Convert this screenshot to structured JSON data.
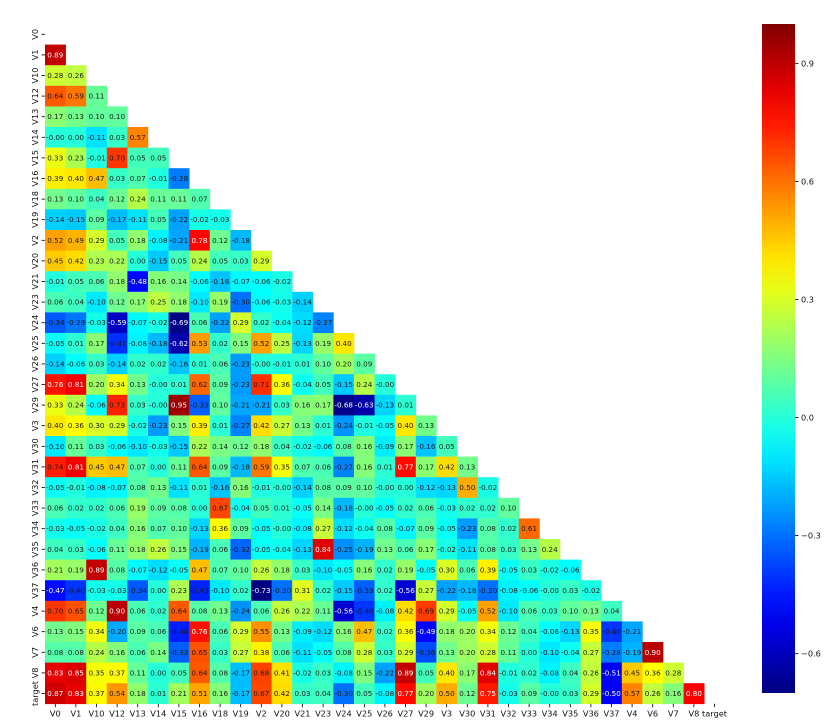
{
  "chart_data": {
    "type": "heatmap",
    "variant": "lower-triangle correlation matrix",
    "colormap": "jet",
    "vmin": -0.7,
    "vmax": 1.0,
    "labels": [
      "V0",
      "V1",
      "V10",
      "V12",
      "V13",
      "V14",
      "V15",
      "V16",
      "V18",
      "V19",
      "V2",
      "V20",
      "V21",
      "V23",
      "V24",
      "V25",
      "V26",
      "V27",
      "V29",
      "V3",
      "V30",
      "V31",
      "V32",
      "V33",
      "V34",
      "V35",
      "V36",
      "V37",
      "V4",
      "V6",
      "V7",
      "V8",
      "target"
    ],
    "matrix": [
      [],
      [
        0.89
      ],
      [
        0.28,
        0.26
      ],
      [
        0.64,
        0.59,
        0.11
      ],
      [
        0.17,
        0.13,
        0.1,
        0.1
      ],
      [
        -0.0,
        0.0,
        -0.11,
        0.03,
        0.57
      ],
      [
        0.33,
        0.23,
        -0.01,
        0.7,
        0.05,
        0.05
      ],
      [
        0.39,
        0.4,
        0.47,
        0.03,
        0.07,
        -0.01,
        -0.28
      ],
      [
        0.13,
        0.1,
        0.04,
        0.12,
        0.24,
        0.11,
        0.11,
        0.07
      ],
      [
        -0.14,
        -0.15,
        0.09,
        -0.17,
        -0.11,
        0.05,
        -0.22,
        -0.02,
        -0.03
      ],
      [
        0.52,
        0.49,
        0.29,
        0.05,
        0.18,
        -0.08,
        -0.21,
        0.78,
        0.12,
        -0.18
      ],
      [
        0.45,
        0.42,
        0.23,
        0.22,
        0.0,
        -0.15,
        0.05,
        0.24,
        0.05,
        0.03,
        0.29
      ],
      [
        -0.01,
        0.05,
        0.06,
        0.18,
        -0.48,
        0.16,
        0.14,
        -0.06,
        -0.16,
        -0.07,
        -0.06,
        -0.02
      ],
      [
        0.06,
        0.04,
        -0.1,
        0.12,
        0.17,
        0.25,
        0.18,
        -0.1,
        0.19,
        -0.3,
        -0.06,
        -0.03,
        -0.14
      ],
      [
        -0.34,
        -0.29,
        -0.03,
        -0.59,
        -0.07,
        -0.02,
        -0.69,
        0.06,
        -0.22,
        0.29,
        0.02,
        -0.04,
        -0.12,
        -0.27
      ],
      [
        -0.05,
        0.01,
        0.17,
        -0.41,
        -0.08,
        -0.18,
        -0.62,
        0.53,
        0.02,
        0.15,
        0.52,
        0.25,
        -0.13,
        0.19,
        0.4
      ],
      [
        -0.14,
        -0.06,
        0.03,
        -0.14,
        0.02,
        0.02,
        -0.16,
        0.01,
        0.06,
        -0.23,
        -0.0,
        -0.01,
        0.01,
        0.1,
        0.2,
        0.09
      ],
      [
        0.76,
        0.81,
        0.2,
        0.34,
        0.13,
        -0.0,
        0.01,
        0.62,
        0.09,
        -0.23,
        0.71,
        0.36,
        -0.04,
        0.05,
        -0.15,
        0.24,
        -0.0
      ],
      [
        0.33,
        0.24,
        -0.06,
        0.73,
        0.03,
        -0.0,
        0.95,
        -0.33,
        0.1,
        -0.21,
        -0.21,
        0.03,
        0.16,
        0.17,
        -0.68,
        -0.63,
        -0.13,
        0.01
      ],
      [
        0.4,
        0.36,
        0.3,
        0.29,
        -0.02,
        -0.23,
        0.15,
        0.39,
        0.01,
        -0.27,
        0.42,
        0.27,
        0.13,
        0.01,
        -0.24,
        -0.01,
        -0.05,
        0.4,
        0.13
      ],
      [
        -0.1,
        0.11,
        0.03,
        -0.06,
        -0.1,
        -0.03,
        -0.15,
        0.22,
        0.14,
        0.12,
        0.18,
        0.04,
        -0.02,
        -0.06,
        0.08,
        0.16,
        -0.09,
        0.17,
        -0.16,
        0.05
      ],
      [
        0.74,
        0.81,
        0.45,
        0.47,
        0.07,
        0.0,
        0.11,
        0.64,
        0.09,
        -0.18,
        0.59,
        0.35,
        0.07,
        0.06,
        -0.27,
        0.16,
        0.01,
        0.77,
        0.17,
        0.42,
        0.13
      ],
      [
        -0.05,
        -0.01,
        -0.08,
        -0.07,
        0.08,
        0.13,
        -0.11,
        0.01,
        -0.16,
        0.16,
        -0.01,
        -0.0,
        -0.14,
        0.08,
        0.09,
        0.1,
        -0.0,
        0.0,
        -0.12,
        -0.13,
        0.5,
        -0.02
      ],
      [
        0.06,
        0.02,
        0.02,
        0.06,
        0.19,
        0.09,
        0.08,
        0.0,
        0.67,
        -0.04,
        0.05,
        0.01,
        -0.05,
        0.14,
        -0.18,
        -0.0,
        -0.05,
        0.02,
        0.06,
        -0.03,
        0.02,
        0.02,
        0.1
      ],
      [
        -0.03,
        -0.05,
        -0.02,
        0.04,
        0.16,
        0.07,
        0.1,
        -0.13,
        0.36,
        0.09,
        -0.05,
        -0.0,
        -0.08,
        0.27,
        -0.12,
        -0.04,
        0.08,
        -0.07,
        0.09,
        -0.05,
        -0.23,
        0.08,
        0.02,
        0.61
      ],
      [
        0.04,
        0.03,
        -0.06,
        0.11,
        0.18,
        0.26,
        0.15,
        -0.19,
        0.06,
        -0.32,
        -0.05,
        -0.04,
        -0.13,
        0.84,
        -0.25,
        -0.19,
        0.13,
        0.06,
        0.17,
        -0.02,
        -0.11,
        0.08,
        0.03,
        0.13,
        0.24
      ],
      [
        0.21,
        0.19,
        0.89,
        0.08,
        -0.07,
        -0.12,
        -0.05,
        0.47,
        0.07,
        0.1,
        0.26,
        0.18,
        0.03,
        -0.1,
        -0.05,
        0.16,
        0.02,
        0.19,
        -0.05,
        0.3,
        0.06,
        0.39,
        -0.05,
        0.03,
        -0.02,
        -0.06
      ],
      [
        -0.47,
        -0.4,
        -0.03,
        -0.03,
        -0.34,
        0.0,
        0.23,
        -0.43,
        -0.1,
        0.02,
        -0.73,
        -0.3,
        0.31,
        0.02,
        -0.15,
        -0.33,
        0.02,
        -0.56,
        0.27,
        -0.22,
        -0.18,
        -0.3,
        -0.08,
        -0.06,
        -0.0,
        0.03,
        -0.02
      ],
      [
        0.7,
        0.65,
        0.12,
        0.9,
        0.06,
        0.02,
        0.64,
        0.08,
        0.13,
        -0.24,
        0.06,
        0.26,
        0.22,
        0.11,
        -0.56,
        -0.4,
        -0.08,
        0.42,
        0.69,
        0.29,
        -0.05,
        0.52,
        -0.1,
        0.06,
        0.03,
        0.1,
        0.13,
        0.04
      ],
      [
        0.13,
        0.15,
        0.34,
        -0.2,
        0.09,
        0.06,
        -0.44,
        0.76,
        0.06,
        0.29,
        0.55,
        0.13,
        -0.09,
        -0.12,
        0.16,
        0.47,
        0.02,
        0.36,
        -0.49,
        0.18,
        0.2,
        0.34,
        0.12,
        0.04,
        -0.06,
        -0.13,
        0.35,
        -0.4,
        -0.21
      ],
      [
        0.08,
        0.08,
        0.24,
        0.16,
        0.06,
        0.14,
        -0.33,
        0.65,
        0.03,
        0.27,
        0.38,
        0.06,
        -0.11,
        -0.05,
        0.08,
        0.28,
        0.03,
        0.29,
        -0.36,
        0.13,
        0.2,
        0.28,
        0.11,
        0.0,
        -0.1,
        -0.04,
        0.27,
        -0.28,
        -0.19,
        0.9
      ],
      [
        0.83,
        0.85,
        0.35,
        0.37,
        0.11,
        0.0,
        0.05,
        0.64,
        0.08,
        -0.17,
        0.68,
        0.41,
        -0.02,
        0.03,
        -0.08,
        0.15,
        -0.22,
        0.89,
        0.05,
        0.4,
        0.17,
        0.84,
        -0.01,
        0.02,
        -0.08,
        0.04,
        0.26,
        -0.51,
        0.45,
        0.36,
        0.28
      ],
      [
        0.87,
        0.83,
        0.37,
        0.54,
        0.18,
        0.01,
        0.21,
        0.51,
        0.16,
        -0.17,
        0.67,
        0.42,
        0.03,
        0.04,
        -0.3,
        0.05,
        -0.08,
        0.77,
        0.2,
        0.5,
        0.12,
        0.75,
        -0.03,
        0.09,
        -0.0,
        0.03,
        0.29,
        -0.5,
        0.57,
        0.26,
        0.16,
        0.8
      ]
    ],
    "colorbar": {
      "ticks": [
        0.9,
        0.6,
        0.3,
        0.0,
        -0.3,
        -0.6
      ],
      "tick_labels": [
        "0.9",
        "0.6",
        "0.3",
        "0.0",
        "−0.3",
        "−0.6"
      ]
    },
    "title": "",
    "xlabel": "",
    "ylabel": ""
  }
}
